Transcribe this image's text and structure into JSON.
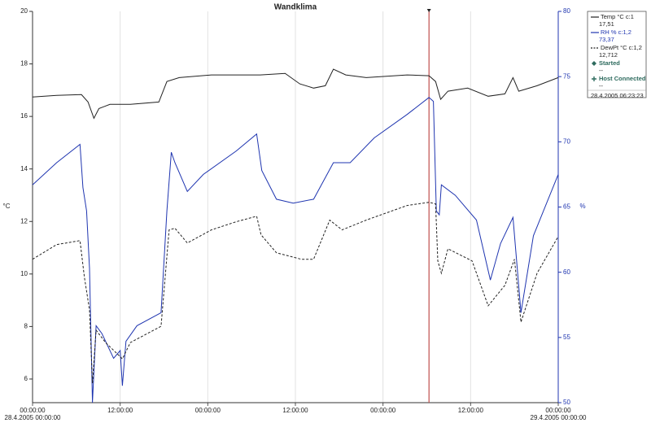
{
  "chart_data": {
    "type": "line",
    "title": "Wandklima",
    "y_label": "°C",
    "y2_label": "%",
    "xlim": [
      0,
      72
    ],
    "xticks": [
      {
        "value": 0,
        "label": "00:00:00"
      },
      {
        "value": 12,
        "label": "12:00:00"
      },
      {
        "value": 24,
        "label": "00:00:00"
      },
      {
        "value": 36,
        "label": "12:00:00"
      },
      {
        "value": 48,
        "label": "00:00:00"
      },
      {
        "value": 60,
        "label": "12:00:00"
      },
      {
        "value": 72,
        "label": "00:00:00"
      }
    ],
    "x_start_label": "28.4.2005 00:00:00",
    "x_end_label": "29.4.2005 00:00:00",
    "ylim": [
      5.1,
      20
    ],
    "yticks": [
      6,
      8,
      10,
      12,
      14,
      16,
      18,
      20
    ],
    "y2lim": [
      50,
      80
    ],
    "y2ticks": [
      50,
      55,
      60,
      65,
      70,
      75,
      80
    ],
    "grid": "x",
    "cursor_x": 54.3,
    "cursor_color": "#c0504d",
    "series": [
      {
        "name": "Temp °C c:1",
        "reading": "17,51",
        "color": "#222222",
        "dashed": false,
        "axis": "y",
        "x": [
          0,
          3.3,
          6.7,
          7.6,
          8.4,
          9.1,
          10.6,
          13.4,
          17.3,
          18.4,
          20.1,
          24.5,
          31.2,
          34.6,
          36.6,
          38.5,
          40.1,
          41.2,
          42.9,
          45.7,
          51.3,
          54.3,
          55.2,
          55.9,
          56.9,
          59.6,
          62.4,
          64.7,
          65.8,
          66.6,
          69.1,
          72
        ],
        "values": [
          16.74,
          16.8,
          16.83,
          16.55,
          15.93,
          16.3,
          16.46,
          16.46,
          16.55,
          17.33,
          17.48,
          17.58,
          17.58,
          17.64,
          17.24,
          17.08,
          17.17,
          17.8,
          17.58,
          17.48,
          17.58,
          17.55,
          17.33,
          16.65,
          16.96,
          17.08,
          16.77,
          16.86,
          17.48,
          16.96,
          17.17,
          17.48
        ]
      },
      {
        "name": "RH % c:1,2",
        "reading": "73,37",
        "color": "#1f35b0",
        "dashed": false,
        "axis": "y2",
        "x": [
          0,
          3.3,
          6.5,
          6.9,
          7.4,
          7.8,
          8.2,
          8.7,
          9.5,
          11.1,
          12.0,
          12.3,
          12.8,
          14.3,
          17.6,
          18.4,
          19.0,
          19.5,
          21.2,
          23.4,
          27.9,
          30.7,
          31.4,
          33.4,
          35.7,
          38.5,
          41.2,
          43.5,
          46.8,
          51.3,
          54.3,
          54.9,
          55.3,
          55.7,
          56.0,
          57.9,
          60.8,
          62.7,
          64.1,
          65.8,
          66.9,
          68.6,
          72
        ],
        "values": [
          66.7,
          68.4,
          69.8,
          66.5,
          64.7,
          60.3,
          50.0,
          55.9,
          55.3,
          53.4,
          54.0,
          51.3,
          54.7,
          55.9,
          56.9,
          64.7,
          69.2,
          68.4,
          66.2,
          67.5,
          69.3,
          70.6,
          67.8,
          65.6,
          65.3,
          65.6,
          68.4,
          68.4,
          70.3,
          72.1,
          73.4,
          73.1,
          64.7,
          64.4,
          66.7,
          65.9,
          64.0,
          59.4,
          62.2,
          64.2,
          56.9,
          62.8,
          67.5
        ]
      },
      {
        "name": "DewPt °C c:1,2",
        "reading": "12,712",
        "color": "#222222",
        "dashed": true,
        "axis": "y",
        "x": [
          0,
          3.3,
          6.5,
          7.1,
          7.8,
          8.2,
          8.7,
          10.0,
          12.3,
          13.4,
          17.6,
          18.7,
          19.5,
          21.2,
          24.5,
          27.9,
          30.7,
          31.3,
          33.4,
          36.8,
          38.5,
          40.7,
          42.4,
          45.7,
          51.3,
          54.3,
          55.2,
          55.5,
          56.0,
          56.9,
          60.2,
          62.4,
          64.7,
          66.0,
          66.9,
          69.1,
          72
        ],
        "values": [
          10.56,
          11.12,
          11.27,
          9.88,
          8.63,
          5.84,
          7.86,
          7.39,
          6.77,
          7.39,
          8.01,
          11.68,
          11.74,
          11.18,
          11.68,
          11.99,
          12.2,
          11.49,
          10.81,
          10.56,
          10.56,
          12.05,
          11.68,
          12.05,
          12.61,
          12.73,
          12.67,
          10.5,
          10.03,
          10.96,
          10.5,
          8.79,
          9.57,
          10.56,
          8.17,
          10.03,
          11.43
        ]
      }
    ],
    "events": [
      {
        "name": "Started",
        "reading": "--",
        "color": "#2e6b5e"
      },
      {
        "name": "Host Connected",
        "reading": "--",
        "color": "#2e6b5e"
      }
    ],
    "cursor_label": "28.4.2005 06:23:23"
  }
}
